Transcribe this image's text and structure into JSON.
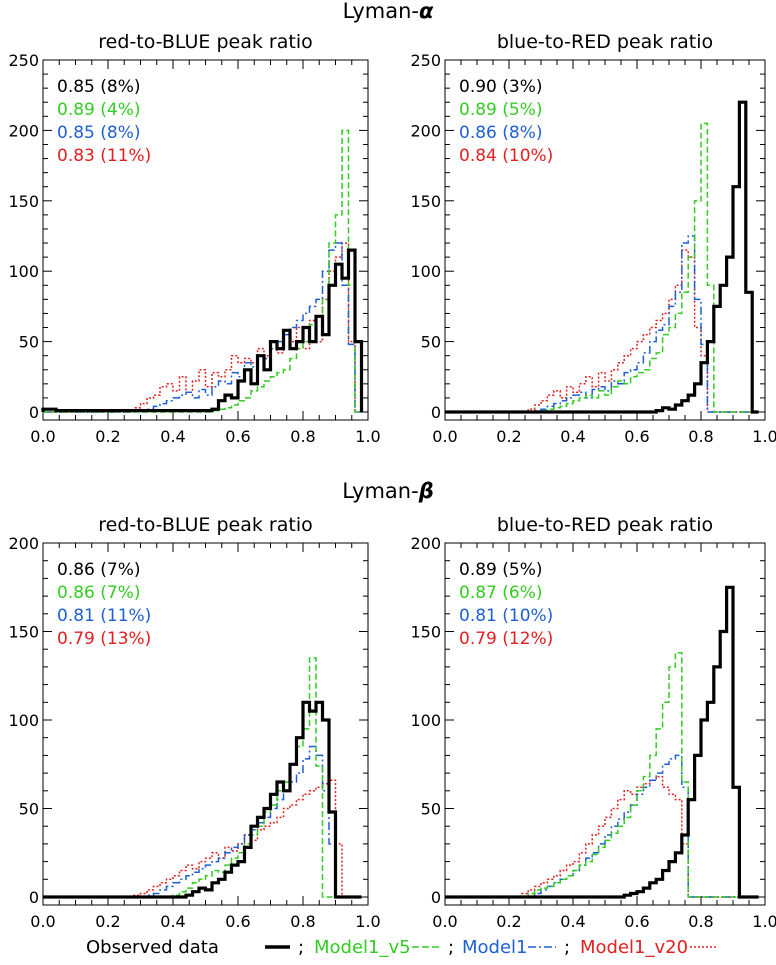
{
  "sections": [
    {
      "title": "Lyman-",
      "symbol": "α"
    },
    {
      "title": "Lyman-",
      "symbol": "β"
    }
  ],
  "colors": {
    "observed": "#000000",
    "model1_v5": "#33cc22",
    "model1": "#1f5fd6",
    "model1_v20": "#e02020"
  },
  "legend": {
    "observed": "Observed data",
    "model1_v5": "Model1_v5",
    "model1": "Model1",
    "model1_v20": "Model1_v20",
    "separator": ";"
  },
  "chart_data": [
    {
      "type": "histogram-step",
      "title": "red-to-BLUE peak ratio",
      "xlim": [
        0.0,
        1.0
      ],
      "ylim": [
        0,
        250
      ],
      "xticks": [
        "0.0",
        "0.2",
        "0.4",
        "0.6",
        "0.8",
        "1.0"
      ],
      "yticks": [
        "0",
        "50",
        "100",
        "150",
        "200",
        "250"
      ],
      "stats": [
        {
          "series": "observed",
          "text": "0.85 (8%)"
        },
        {
          "series": "model1_v5",
          "text": "0.89 (4%)"
        },
        {
          "series": "model1",
          "text": "0.85 (8%)"
        },
        {
          "series": "model1_v20",
          "text": "0.83 (11%)"
        }
      ],
      "bin_start": 0.0,
      "bin_width": 0.02,
      "series": [
        {
          "key": "observed",
          "values": [
            2,
            2,
            1,
            1,
            1,
            1,
            1,
            1,
            1,
            1,
            1,
            1,
            1,
            1,
            1,
            1,
            1,
            1,
            1,
            1,
            1,
            1,
            1,
            1,
            1,
            1,
            2,
            8,
            12,
            10,
            22,
            30,
            20,
            40,
            30,
            50,
            45,
            58,
            45,
            50,
            60,
            50,
            68,
            55,
            90,
            105,
            95,
            115,
            50
          ]
        },
        {
          "key": "model1_v5",
          "values": [
            0,
            0,
            0,
            0,
            0,
            0,
            0,
            0,
            0,
            0,
            0,
            0,
            0,
            0,
            0,
            0,
            0,
            0,
            0,
            0,
            0,
            0,
            0,
            0,
            0,
            0,
            1,
            2,
            3,
            5,
            8,
            10,
            15,
            18,
            22,
            25,
            28,
            30,
            38,
            45,
            50,
            62,
            68,
            80,
            120,
            140,
            200,
            90,
            0
          ]
        },
        {
          "key": "model1",
          "values": [
            0,
            0,
            0,
            0,
            0,
            0,
            0,
            0,
            0,
            0,
            0,
            0,
            0,
            0,
            1,
            1,
            2,
            4,
            6,
            8,
            10,
            12,
            14,
            10,
            16,
            12,
            18,
            22,
            20,
            28,
            25,
            35,
            32,
            40,
            38,
            45,
            50,
            55,
            60,
            65,
            70,
            75,
            80,
            100,
            115,
            120,
            90,
            48,
            0
          ]
        },
        {
          "key": "model1_v20",
          "values": [
            0,
            0,
            0,
            0,
            0,
            0,
            0,
            0,
            0,
            0,
            0,
            0,
            0,
            1,
            3,
            6,
            10,
            12,
            18,
            20,
            15,
            25,
            14,
            22,
            30,
            18,
            28,
            25,
            30,
            40,
            35,
            38,
            35,
            45,
            40,
            50,
            42,
            55,
            50,
            60,
            45,
            65,
            50,
            80,
            100,
            110,
            120,
            50,
            0
          ]
        }
      ]
    },
    {
      "type": "histogram-step",
      "title": "blue-to-RED peak ratio",
      "xlim": [
        0.0,
        1.0
      ],
      "ylim": [
        0,
        250
      ],
      "xticks": [
        "0.0",
        "0.2",
        "0.4",
        "0.6",
        "0.8",
        "1.0"
      ],
      "yticks": [
        "0",
        "50",
        "100",
        "150",
        "200",
        "250"
      ],
      "stats": [
        {
          "series": "observed",
          "text": "0.90 (3%)"
        },
        {
          "series": "model1_v5",
          "text": "0.89 (5%)"
        },
        {
          "series": "model1",
          "text": "0.86 (8%)"
        },
        {
          "series": "model1_v20",
          "text": "0.84 (10%)"
        }
      ],
      "bin_start": 0.0,
      "bin_width": 0.02,
      "series": [
        {
          "key": "observed",
          "values": [
            0,
            0,
            0,
            0,
            0,
            0,
            0,
            0,
            0,
            0,
            0,
            0,
            0,
            0,
            0,
            0,
            0,
            0,
            0,
            0,
            0,
            0,
            0,
            0,
            0,
            0,
            0,
            0,
            0,
            0,
            0,
            0,
            0,
            1,
            3,
            2,
            5,
            8,
            12,
            20,
            35,
            50,
            75,
            90,
            110,
            160,
            220,
            85,
            0
          ]
        },
        {
          "key": "model1_v5",
          "values": [
            0,
            0,
            0,
            0,
            0,
            0,
            0,
            0,
            0,
            0,
            0,
            0,
            0,
            0,
            0,
            1,
            2,
            3,
            4,
            6,
            8,
            10,
            12,
            10,
            15,
            12,
            18,
            22,
            20,
            25,
            28,
            30,
            38,
            42,
            55,
            60,
            70,
            85,
            110,
            150,
            205,
            90,
            0,
            0,
            0,
            0,
            0,
            0,
            0
          ]
        },
        {
          "key": "model1",
          "values": [
            0,
            0,
            0,
            0,
            0,
            0,
            0,
            0,
            0,
            0,
            0,
            0,
            0,
            0,
            1,
            2,
            4,
            6,
            8,
            10,
            12,
            14,
            10,
            16,
            18,
            15,
            22,
            20,
            28,
            30,
            35,
            42,
            50,
            58,
            62,
            75,
            85,
            120,
            125,
            80,
            48,
            0,
            0,
            0,
            0,
            0,
            0,
            0,
            0
          ]
        },
        {
          "key": "model1_v20",
          "values": [
            0,
            0,
            0,
            0,
            0,
            0,
            0,
            0,
            0,
            0,
            0,
            0,
            0,
            2,
            5,
            8,
            12,
            15,
            10,
            18,
            14,
            20,
            25,
            18,
            28,
            22,
            30,
            35,
            40,
            45,
            50,
            55,
            60,
            65,
            70,
            80,
            90,
            115,
            110,
            60,
            40,
            0,
            0,
            0,
            0,
            0,
            0,
            0,
            0
          ]
        }
      ]
    },
    {
      "type": "histogram-step",
      "title": "red-to-BLUE peak ratio",
      "xlim": [
        0.0,
        1.0
      ],
      "ylim": [
        0,
        200
      ],
      "xticks": [
        "0.0",
        "0.2",
        "0.4",
        "0.6",
        "0.8",
        "1.0"
      ],
      "yticks": [
        "0",
        "50",
        "100",
        "150",
        "200"
      ],
      "stats": [
        {
          "series": "observed",
          "text": "0.86 (7%)"
        },
        {
          "series": "model1_v5",
          "text": "0.86 (7%)"
        },
        {
          "series": "model1",
          "text": "0.81 (11%)"
        },
        {
          "series": "model1_v20",
          "text": "0.79 (13%)"
        }
      ],
      "bin_start": 0.0,
      "bin_width": 0.02,
      "series": [
        {
          "key": "observed",
          "values": [
            0,
            0,
            0,
            0,
            0,
            0,
            0,
            0,
            0,
            0,
            0,
            0,
            0,
            0,
            0,
            0,
            0,
            0,
            0,
            0,
            0,
            0,
            1,
            3,
            5,
            4,
            8,
            10,
            14,
            18,
            20,
            28,
            40,
            45,
            50,
            58,
            65,
            60,
            75,
            90,
            110,
            105,
            110,
            100,
            48,
            0,
            0,
            0,
            0
          ]
        },
        {
          "key": "model1_v5",
          "values": [
            0,
            0,
            0,
            0,
            0,
            0,
            0,
            0,
            0,
            0,
            0,
            0,
            0,
            0,
            0,
            0,
            0,
            0,
            0,
            0,
            1,
            3,
            5,
            8,
            10,
            12,
            15,
            14,
            18,
            22,
            25,
            30,
            35,
            40,
            48,
            52,
            60,
            65,
            75,
            85,
            95,
            135,
            74,
            0,
            0,
            0,
            0,
            0,
            0
          ]
        },
        {
          "key": "model1",
          "values": [
            0,
            0,
            0,
            0,
            0,
            0,
            0,
            0,
            0,
            0,
            0,
            0,
            0,
            0,
            0,
            0,
            1,
            2,
            4,
            6,
            8,
            10,
            12,
            14,
            16,
            18,
            20,
            22,
            25,
            28,
            30,
            35,
            38,
            42,
            45,
            50,
            55,
            60,
            65,
            70,
            78,
            85,
            80,
            60,
            30,
            0,
            0,
            0,
            0
          ]
        },
        {
          "key": "model1_v20",
          "values": [
            0,
            0,
            0,
            0,
            0,
            0,
            0,
            0,
            0,
            0,
            0,
            0,
            0,
            0,
            1,
            2,
            4,
            6,
            8,
            10,
            12,
            15,
            18,
            16,
            20,
            22,
            25,
            22,
            28,
            26,
            30,
            35,
            32,
            38,
            40,
            42,
            45,
            50,
            52,
            55,
            58,
            60,
            62,
            64,
            66,
            30,
            0,
            0,
            0
          ]
        }
      ]
    },
    {
      "type": "histogram-step",
      "title": "blue-to-RED peak ratio",
      "xlim": [
        0.0,
        1.0
      ],
      "ylim": [
        0,
        200
      ],
      "xticks": [
        "0.0",
        "0.2",
        "0.4",
        "0.6",
        "0.8",
        "1.0"
      ],
      "yticks": [
        "0",
        "50",
        "100",
        "150",
        "200"
      ],
      "stats": [
        {
          "series": "observed",
          "text": "0.89 (5%)"
        },
        {
          "series": "model1_v5",
          "text": "0.87 (6%)"
        },
        {
          "series": "model1",
          "text": "0.81 (10%)"
        },
        {
          "series": "model1_v20",
          "text": "0.79 (12%)"
        }
      ],
      "bin_start": 0.0,
      "bin_width": 0.02,
      "series": [
        {
          "key": "observed",
          "values": [
            0,
            0,
            0,
            0,
            0,
            0,
            0,
            0,
            0,
            0,
            0,
            0,
            0,
            0,
            0,
            0,
            0,
            0,
            0,
            0,
            0,
            0,
            0,
            0,
            0,
            0,
            0,
            0,
            1,
            2,
            3,
            5,
            8,
            10,
            15,
            20,
            25,
            35,
            55,
            80,
            100,
            110,
            130,
            150,
            175,
            62,
            0,
            0,
            0
          ]
        },
        {
          "key": "model1_v5",
          "values": [
            0,
            0,
            0,
            0,
            0,
            0,
            0,
            0,
            0,
            0,
            0,
            0,
            0,
            2,
            4,
            5,
            6,
            8,
            10,
            12,
            15,
            18,
            20,
            24,
            28,
            32,
            36,
            40,
            45,
            52,
            60,
            68,
            80,
            95,
            110,
            130,
            138,
            65,
            0,
            0,
            0,
            0,
            0,
            0,
            0,
            0,
            0,
            0,
            0
          ]
        },
        {
          "key": "model1",
          "values": [
            0,
            0,
            0,
            0,
            0,
            0,
            0,
            0,
            0,
            0,
            0,
            0,
            0,
            0,
            2,
            4,
            6,
            8,
            10,
            12,
            15,
            18,
            22,
            25,
            30,
            35,
            40,
            44,
            48,
            52,
            58,
            62,
            66,
            70,
            75,
            78,
            80,
            62,
            0,
            0,
            0,
            0,
            0,
            0,
            0,
            0,
            0,
            0,
            0
          ]
        },
        {
          "key": "model1_v20",
          "values": [
            0,
            0,
            0,
            0,
            0,
            0,
            0,
            0,
            0,
            0,
            0,
            0,
            2,
            4,
            6,
            8,
            10,
            12,
            15,
            18,
            20,
            25,
            30,
            35,
            40,
            45,
            50,
            55,
            60,
            58,
            62,
            64,
            66,
            68,
            62,
            58,
            55,
            30,
            0,
            0,
            0,
            0,
            0,
            0,
            0,
            0,
            0,
            0,
            0
          ]
        }
      ]
    }
  ]
}
